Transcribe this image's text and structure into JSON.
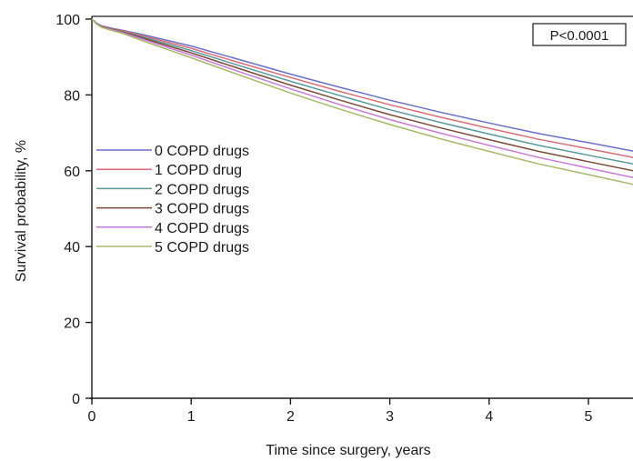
{
  "chart_data": {
    "type": "line",
    "title": "",
    "xlabel": "Time since surgery, years",
    "ylabel": "Survival probability, %",
    "xlim": [
      0,
      5.45
    ],
    "ylim": [
      0,
      100
    ],
    "x_ticks": [
      0,
      1,
      2,
      3,
      4,
      5
    ],
    "y_ticks": [
      0,
      20,
      40,
      60,
      80,
      100
    ],
    "grid": false,
    "legend_position": "center-left",
    "annotation": "P<0.0001",
    "x": [
      0,
      0.05,
      0.1,
      0.2,
      0.3,
      0.5,
      1,
      1.5,
      2,
      2.5,
      3,
      3.5,
      4,
      4.5,
      5,
      5.45
    ],
    "series": [
      {
        "name": "0 COPD drugs",
        "color": "#6b6fc8",
        "values": [
          100,
          98.9,
          98.2,
          97.6,
          97.1,
          96.0,
          92.9,
          89.2,
          85.5,
          82.0,
          78.6,
          75.5,
          72.6,
          69.8,
          67.4,
          65.2
        ]
      },
      {
        "name": "1 COPD drug",
        "color": "#d86b78",
        "values": [
          100,
          98.8,
          98.1,
          97.5,
          97.0,
          95.7,
          92.3,
          88.4,
          84.6,
          80.9,
          77.4,
          74.2,
          71.2,
          68.3,
          65.8,
          63.5
        ]
      },
      {
        "name": "2 COPD drugs",
        "color": "#5c9a9a",
        "values": [
          100,
          98.8,
          98.0,
          97.4,
          96.8,
          95.4,
          91.7,
          87.6,
          83.6,
          79.8,
          76.1,
          72.8,
          69.7,
          66.7,
          64.1,
          61.8
        ]
      },
      {
        "name": "3 COPD drugs",
        "color": "#7a4a3a",
        "values": [
          100,
          98.7,
          98.0,
          97.3,
          96.7,
          95.1,
          91.1,
          86.8,
          82.6,
          78.6,
          74.8,
          71.4,
          68.2,
          65.1,
          62.4,
          60.0
        ]
      },
      {
        "name": "4 COPD drugs",
        "color": "#c77bd6",
        "values": [
          100,
          98.7,
          97.9,
          97.2,
          96.5,
          94.8,
          90.5,
          86.0,
          81.6,
          77.4,
          73.5,
          70.0,
          66.7,
          63.5,
          60.7,
          58.2
        ]
      },
      {
        "name": "5 COPD drugs",
        "color": "#a8b86a",
        "values": [
          100,
          98.6,
          97.8,
          97.0,
          96.3,
          94.4,
          89.8,
          85.1,
          80.5,
          76.2,
          72.2,
          68.5,
          65.1,
          61.8,
          59.0,
          56.4
        ]
      }
    ]
  }
}
